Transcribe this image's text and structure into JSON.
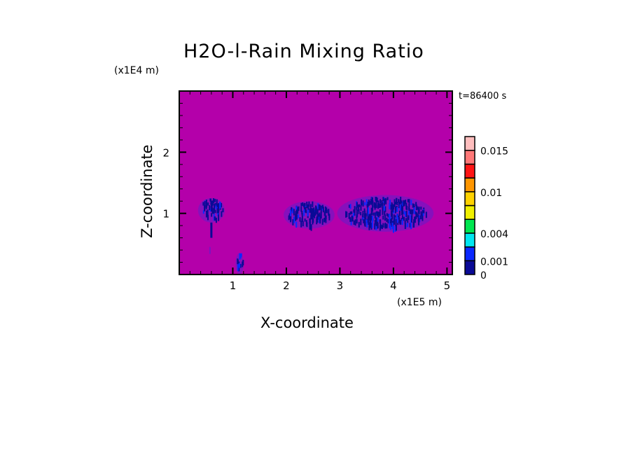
{
  "chart_data": {
    "type": "heatmap",
    "title": "H2O-l-Rain Mixing Ratio",
    "annotation": "t=86400 s",
    "xlabel": "X-coordinate",
    "ylabel": "Z-coordinate",
    "x_unit": "(x1E5 m)",
    "y_unit": "(x1E4 m)",
    "xlim": [
      0,
      5.1
    ],
    "ylim": [
      0,
      3.0
    ],
    "x_ticks": [
      "1",
      "2",
      "3",
      "4",
      "5"
    ],
    "y_ticks": [
      "1",
      "2"
    ],
    "background_value": "below 0 level (magenta fill)",
    "features": [
      {
        "x_range": [
          0.35,
          0.85
        ],
        "z_range": [
          0.85,
          1.25
        ],
        "peak_value": 0.001
      },
      {
        "x_range": [
          1.05,
          1.2
        ],
        "z_range": [
          0,
          0.35
        ],
        "peak_value": 0.001
      },
      {
        "x_range": [
          1.95,
          2.9
        ],
        "z_range": [
          0.75,
          1.2
        ],
        "peak_value": 0.001
      },
      {
        "x_range": [
          2.95,
          4.75
        ],
        "z_range": [
          0.7,
          1.3
        ],
        "peak_value": 0.001
      }
    ],
    "colorbar": {
      "labels": [
        "0",
        "0.001",
        "0.004",
        "0.01",
        "0.015"
      ],
      "label_levels": [
        0,
        1,
        3,
        6,
        9
      ],
      "colors": [
        "#0a0a96",
        "#0a28ff",
        "#00e6f0",
        "#00e650",
        "#f0f000",
        "#ffd200",
        "#ff9600",
        "#ff1414",
        "#ff7878",
        "#ffbebe"
      ],
      "background_color": "#b400aa",
      "faint_color": "#7a14c0"
    }
  }
}
